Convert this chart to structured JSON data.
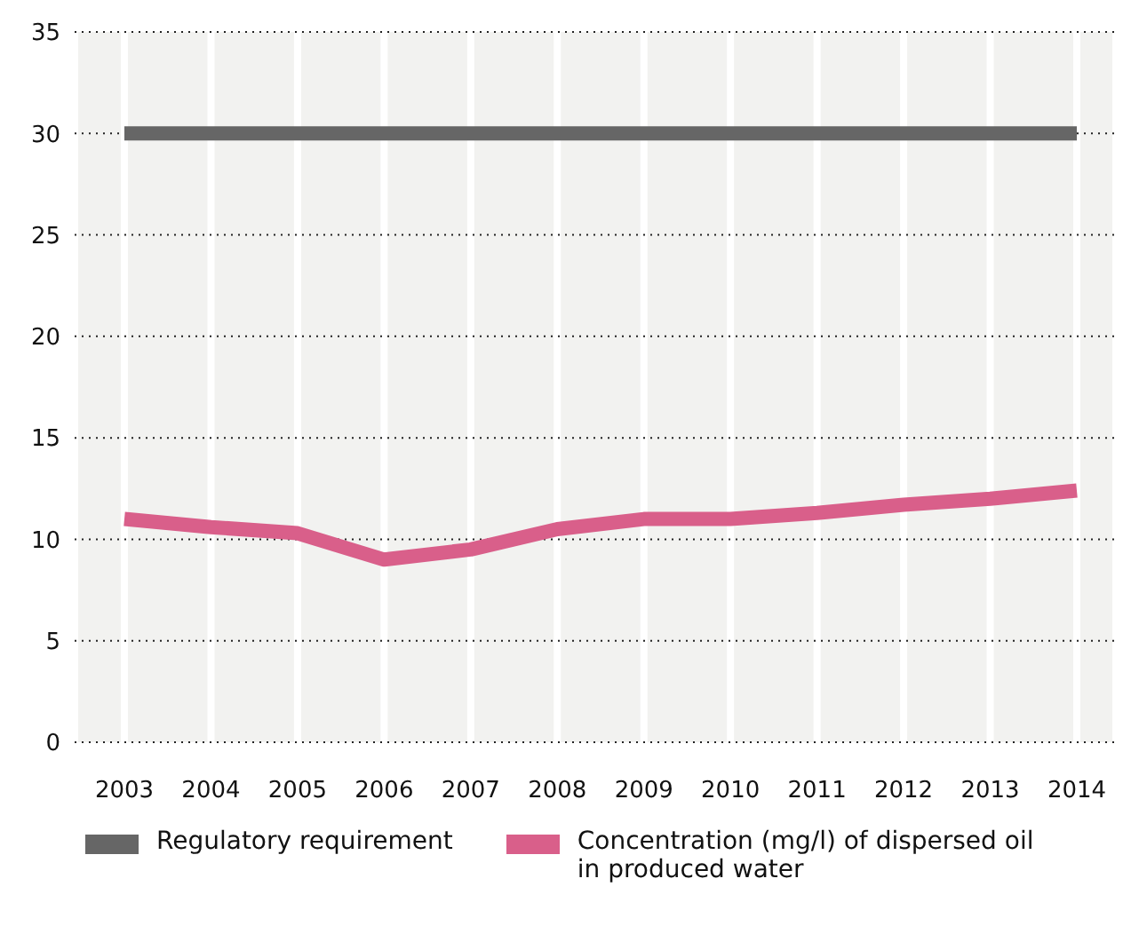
{
  "chart_data": {
    "type": "line",
    "categories": [
      "2003",
      "2004",
      "2005",
      "2006",
      "2007",
      "2008",
      "2009",
      "2010",
      "2011",
      "2012",
      "2013",
      "2014"
    ],
    "series": [
      {
        "name": "Regulatory requirement",
        "color": "#666666",
        "values": [
          30,
          30,
          30,
          30,
          30,
          30,
          30,
          30,
          30,
          30,
          30,
          30
        ]
      },
      {
        "name": "Concentration (mg/l) of dispersed oil in produced water",
        "color": "#d95f8a",
        "values": [
          11,
          10.6,
          10.3,
          9,
          9.5,
          10.5,
          11,
          11,
          11.3,
          11.7,
          12,
          12.4
        ]
      }
    ],
    "ylim": [
      0,
      35
    ],
    "yticks": [
      0,
      5,
      10,
      15,
      20,
      25,
      30,
      35
    ],
    "grid": true,
    "legend": "bottom",
    "marker": "none",
    "line_style": "solid"
  }
}
